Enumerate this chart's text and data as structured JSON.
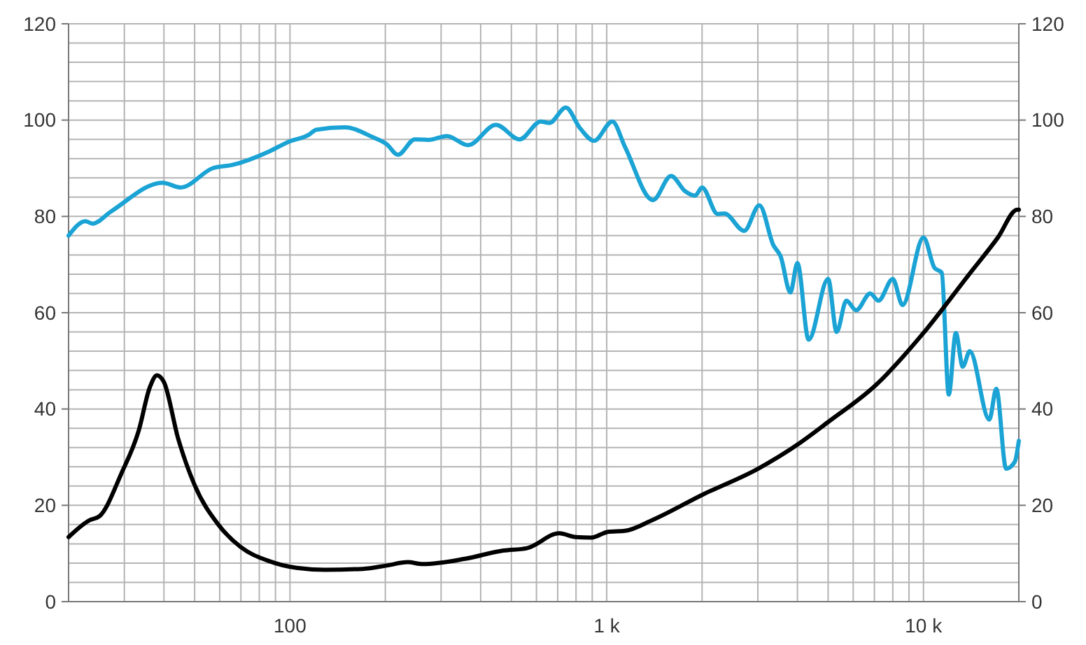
{
  "chart_data": {
    "type": "line",
    "log": "x",
    "grid": true,
    "xlim": [
      20,
      20000
    ],
    "ylim": [
      0,
      120
    ],
    "y2lim": [
      0,
      120
    ],
    "xticks": [
      {
        "value": 20,
        "label": null
      },
      {
        "value": 30,
        "label": null
      },
      {
        "value": 40,
        "label": null
      },
      {
        "value": 50,
        "label": null
      },
      {
        "value": 60,
        "label": null
      },
      {
        "value": 70,
        "label": null
      },
      {
        "value": 80,
        "label": null
      },
      {
        "value": 90,
        "label": null
      },
      {
        "value": 100,
        "label": "100"
      },
      {
        "value": 200,
        "label": null
      },
      {
        "value": 300,
        "label": null
      },
      {
        "value": 400,
        "label": null
      },
      {
        "value": 500,
        "label": null
      },
      {
        "value": 600,
        "label": null
      },
      {
        "value": 700,
        "label": null
      },
      {
        "value": 800,
        "label": null
      },
      {
        "value": 900,
        "label": null
      },
      {
        "value": 1000,
        "label": "1 k"
      },
      {
        "value": 2000,
        "label": null
      },
      {
        "value": 3000,
        "label": null
      },
      {
        "value": 4000,
        "label": null
      },
      {
        "value": 5000,
        "label": null
      },
      {
        "value": 6000,
        "label": null
      },
      {
        "value": 7000,
        "label": null
      },
      {
        "value": 8000,
        "label": null
      },
      {
        "value": 9000,
        "label": null
      },
      {
        "value": 10000,
        "label": "10 k"
      },
      {
        "value": 20000,
        "label": null
      }
    ],
    "yticks": [
      0,
      {
        "value": 4,
        "label": null
      },
      {
        "value": 8,
        "label": null
      },
      {
        "value": 12,
        "label": null
      },
      {
        "value": 16,
        "label": null
      },
      20,
      {
        "value": 24,
        "label": null
      },
      {
        "value": 28,
        "label": null
      },
      {
        "value": 32,
        "label": null
      },
      {
        "value": 36,
        "label": null
      },
      40,
      {
        "value": 44,
        "label": null
      },
      {
        "value": 48,
        "label": null
      },
      {
        "value": 52,
        "label": null
      },
      {
        "value": 56,
        "label": null
      },
      60,
      {
        "value": 64,
        "label": null
      },
      {
        "value": 68,
        "label": null
      },
      {
        "value": 72,
        "label": null
      },
      {
        "value": 76,
        "label": null
      },
      80,
      {
        "value": 84,
        "label": null
      },
      {
        "value": 88,
        "label": null
      },
      {
        "value": 92,
        "label": null
      },
      {
        "value": 96,
        "label": null
      },
      100,
      {
        "value": 104,
        "label": null
      },
      {
        "value": 108,
        "label": null
      },
      {
        "value": 112,
        "label": null
      },
      {
        "value": 116,
        "label": null
      },
      120
    ],
    "y2ticks": [
      0,
      20,
      40,
      60,
      80,
      100,
      120
    ],
    "line_style": "solid",
    "series": [
      {
        "color": "#1aa3d4",
        "x": [
          20,
          22.6,
          23.8,
          27.2,
          39.6,
          45.2,
          57,
          65.9,
          86,
          99,
          115,
          121,
          149,
          182,
          202,
          219,
          248,
          274,
          313,
          365,
          447,
          531,
          619,
          659,
          743,
          824,
          912,
          1042,
          1141,
          1400,
          1596,
          1770,
          1901,
          2000,
          2239,
          2355,
          2716,
          3034,
          3360,
          3540,
          3800,
          4000,
          4340,
          5000,
          5320,
          5710,
          6130,
          6790,
          7210,
          8000,
          8590,
          10000,
          10840,
          11420,
          12020,
          12650,
          13300,
          14000,
          16140,
          16980,
          18240,
          19410,
          20000
        ],
        "values": [
          76,
          79,
          78.5,
          81,
          87,
          86,
          90,
          90.7,
          93.5,
          95.5,
          97,
          98,
          98.5,
          96.5,
          95,
          92.8,
          96,
          95.9,
          96.7,
          94.8,
          99,
          96,
          99.7,
          99.4,
          102.6,
          98.3,
          95.7,
          99.7,
          94.5,
          83.4,
          88.4,
          85.2,
          84.3,
          86,
          80.5,
          80.6,
          77,
          82.3,
          74,
          71.7,
          64.2,
          70.3,
          54.4,
          67,
          56,
          62.5,
          60.5,
          64,
          62.5,
          67,
          61.6,
          75.6,
          69.3,
          68.3,
          43,
          55.8,
          48.8,
          52,
          37.8,
          44.2,
          27.6,
          29,
          33.4
        ]
      },
      {
        "color": "#000000",
        "x": [
          20,
          23.3,
          25,
          29.4,
          33.3,
          36.1,
          38,
          40,
          44.3,
          50,
          59.4,
          70,
          86,
          105,
          129,
          170,
          202,
          235,
          263,
          357,
          471,
          560,
          708,
          800,
          894,
          1010,
          1142,
          1400,
          2020,
          3003,
          4040,
          5000,
          7080,
          10000,
          13870,
          17170,
          19780,
          20000
        ],
        "values": [
          13.4,
          16.9,
          17.7,
          26.7,
          35.5,
          44.5,
          47,
          45.6,
          34,
          24.2,
          16,
          11.3,
          8.4,
          7,
          6.6,
          6.8,
          7.5,
          8.2,
          7.8,
          8.9,
          10.6,
          11.1,
          14.2,
          13.4,
          13.3,
          14.5,
          14.7,
          17,
          22.3,
          27.6,
          32.8,
          37.3,
          45,
          55.8,
          67.8,
          75.6,
          81.4,
          81.4
        ]
      }
    ]
  }
}
